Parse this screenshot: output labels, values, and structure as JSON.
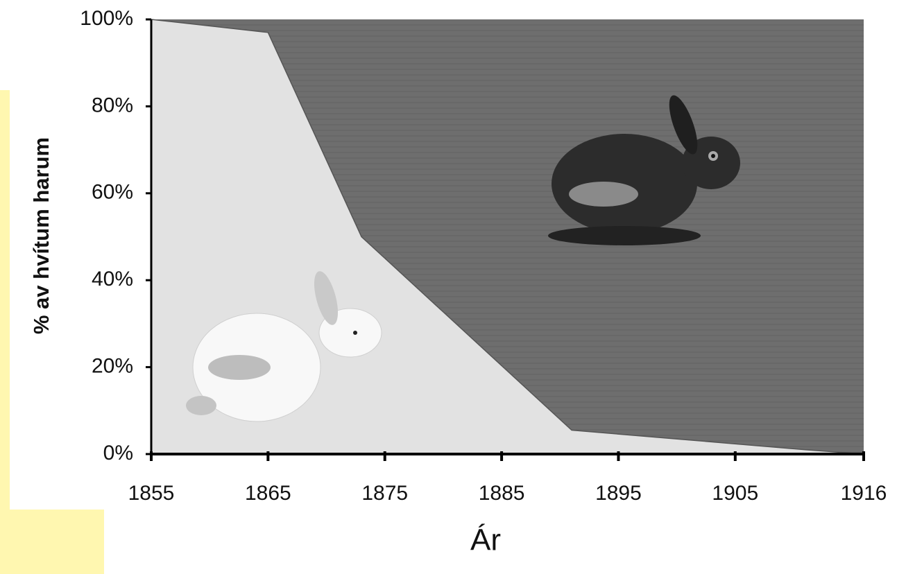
{
  "chart_data": {
    "type": "area",
    "ylabel": "% av hvítum harum",
    "xlabel": "Ár",
    "x": [
      1855,
      1865,
      1873,
      1891,
      1911,
      1916
    ],
    "values": [
      100,
      97,
      50,
      5.5,
      1,
      0
    ],
    "color": "#e2e2e2",
    "upper_color": "#6c6c6c",
    "xlim": [
      1855,
      1916
    ],
    "xticks": [
      1855,
      1865,
      1875,
      1885,
      1895,
      1905,
      1916
    ],
    "ylim": [
      0,
      100
    ],
    "yticks": [
      {
        "value": 0,
        "label": "0%"
      },
      {
        "value": 20,
        "label": "20%"
      },
      {
        "value": 40,
        "label": "40%"
      },
      {
        "value": 60,
        "label": "60%"
      },
      {
        "value": 80,
        "label": "80%"
      },
      {
        "value": 100,
        "label": "100%"
      }
    ]
  }
}
